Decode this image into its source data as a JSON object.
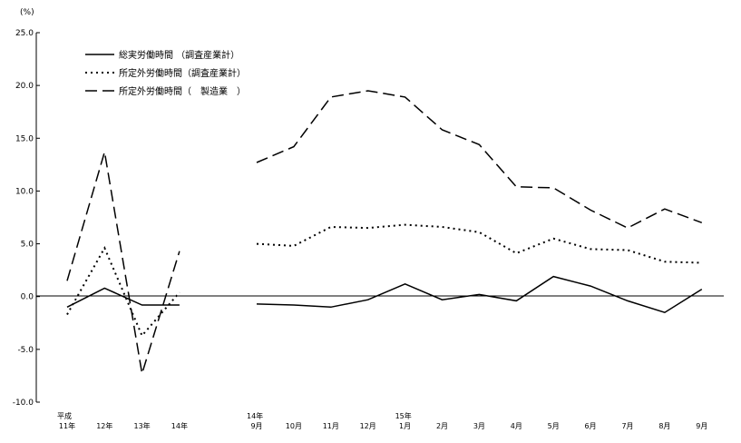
{
  "chart_data": {
    "type": "line",
    "unit_label": "(%)",
    "y_ticks": [
      "25.0",
      "20.0",
      "15.0",
      "10.0",
      "5.0",
      "0.0",
      "-5.0",
      "-10.0"
    ],
    "ylim": [
      -10,
      25
    ],
    "grid": false,
    "legend_position": "top-left",
    "groups": [
      {
        "categories": [
          {
            "top": "平成",
            "bottom": "11年"
          },
          {
            "top": "",
            "bottom": "12年"
          },
          {
            "top": "",
            "bottom": "13年"
          },
          {
            "top": "",
            "bottom": "14年"
          }
        ]
      },
      {
        "categories": [
          {
            "top": "14年",
            "bottom": "9月"
          },
          {
            "top": "",
            "bottom": "10月"
          },
          {
            "top": "",
            "bottom": "11月"
          },
          {
            "top": "",
            "bottom": "12月"
          },
          {
            "top": "15年",
            "bottom": "1月"
          },
          {
            "top": "",
            "bottom": "2月"
          },
          {
            "top": "",
            "bottom": "3月"
          },
          {
            "top": "",
            "bottom": "4月"
          },
          {
            "top": "",
            "bottom": "5月"
          },
          {
            "top": "",
            "bottom": "6月"
          },
          {
            "top": "",
            "bottom": "7月"
          },
          {
            "top": "",
            "bottom": "8月"
          },
          {
            "top": "",
            "bottom": "9月"
          }
        ]
      }
    ],
    "series": [
      {
        "name": "総実労働時間 （調査産業計）",
        "style": "solid",
        "color": "#000000",
        "values": [
          [
            -1.0,
            0.8,
            -0.8,
            -0.8
          ],
          [
            -0.7,
            -0.8,
            -1.0,
            -0.3,
            1.2,
            -0.3,
            0.2,
            -0.4,
            1.9,
            1.0,
            -0.4,
            -1.5,
            0.7
          ]
        ]
      },
      {
        "name": "所定外労働時間（調査産業計）",
        "style": "dotted",
        "color": "#000000",
        "values": [
          [
            -1.7,
            4.6,
            -3.7,
            0.4
          ],
          [
            5.0,
            4.8,
            6.6,
            6.5,
            6.8,
            6.6,
            6.1,
            4.1,
            5.5,
            4.5,
            4.4,
            3.3,
            3.2
          ]
        ]
      },
      {
        "name": "所定外労働時間（　製造業　）",
        "style": "dashed",
        "color": "#000000",
        "values": [
          [
            1.5,
            13.7,
            -7.3,
            4.3
          ],
          [
            12.7,
            14.2,
            18.9,
            19.5,
            18.9,
            15.8,
            14.4,
            10.4,
            10.3,
            8.2,
            6.5,
            8.3,
            7.0
          ]
        ]
      }
    ]
  }
}
